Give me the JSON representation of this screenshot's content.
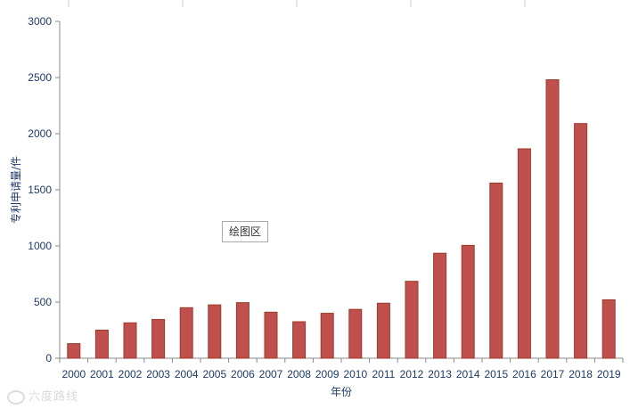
{
  "chart_data": {
    "type": "bar",
    "categories": [
      "2000",
      "2001",
      "2002",
      "2003",
      "2004",
      "2005",
      "2006",
      "2007",
      "2008",
      "2009",
      "2010",
      "2011",
      "2012",
      "2013",
      "2014",
      "2015",
      "2016",
      "2017",
      "2018",
      "2019"
    ],
    "values": [
      130,
      250,
      315,
      345,
      450,
      475,
      495,
      410,
      325,
      400,
      435,
      490,
      685,
      935,
      1005,
      1560,
      1865,
      2480,
      2090,
      520
    ],
    "title": "",
    "xlabel": "年份",
    "ylabel": "专利申请量/件",
    "ylim": [
      0,
      3000
    ],
    "yticks": [
      0,
      500,
      1000,
      1500,
      2000,
      2500,
      3000
    ],
    "bar_color": "#c0504d",
    "bar_edge_color": "#9c3a2a",
    "grid": false
  },
  "tooltip": {
    "label": "绘图区"
  },
  "watermark": {
    "text": "六度路线"
  }
}
